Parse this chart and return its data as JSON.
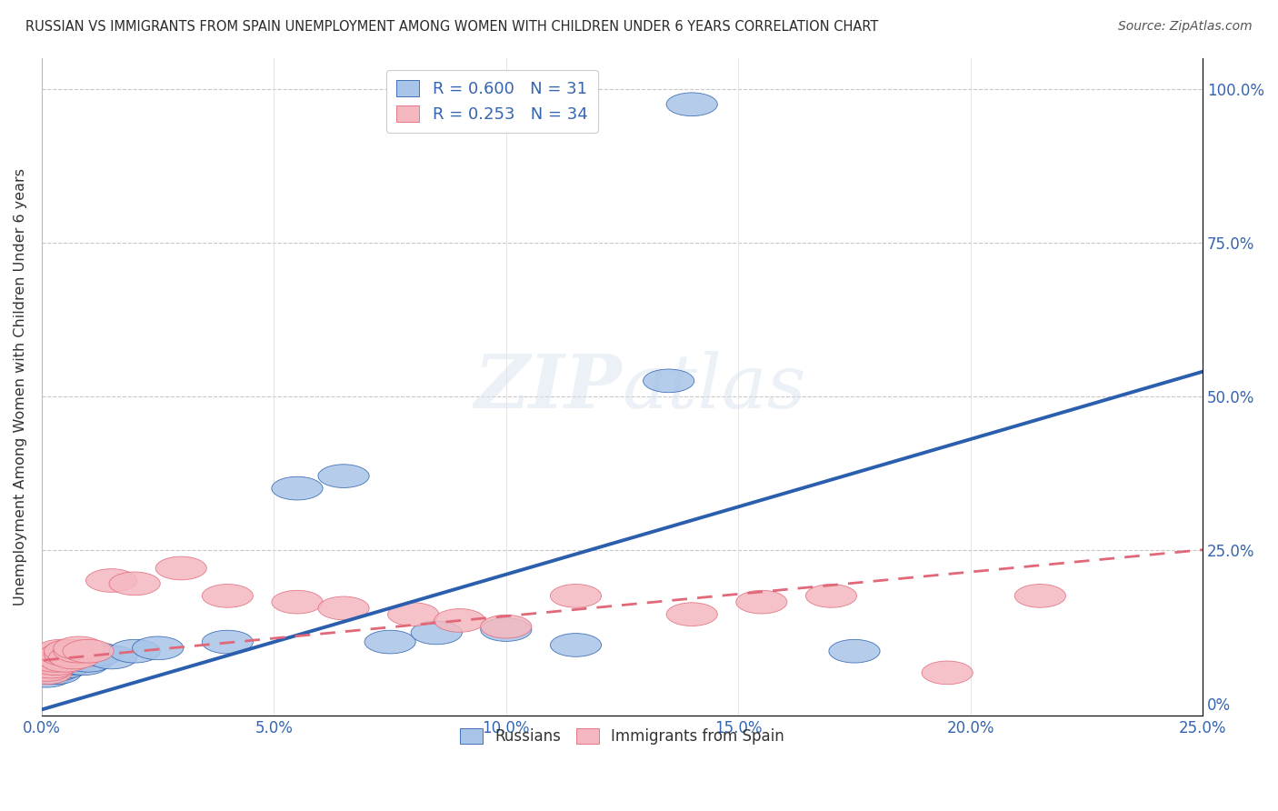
{
  "title": "RUSSIAN VS IMMIGRANTS FROM SPAIN UNEMPLOYMENT AMONG WOMEN WITH CHILDREN UNDER 6 YEARS CORRELATION CHART",
  "source": "Source: ZipAtlas.com",
  "xlim": [
    0.0,
    0.25
  ],
  "ylim": [
    -0.02,
    1.05
  ],
  "x_ticks": [
    0.0,
    0.05,
    0.1,
    0.15,
    0.2,
    0.25
  ],
  "x_ticklabels": [
    "0.0%",
    "5.0%",
    "10.0%",
    "15.0%",
    "20.0%",
    "25.0%"
  ],
  "y_ticks": [
    0.0,
    0.25,
    0.5,
    0.75,
    1.0
  ],
  "y_ticklabels_right": [
    "0%",
    "25.0%",
    "50.0%",
    "75.0%",
    "100.0%"
  ],
  "legend_russians": "Russians",
  "legend_spain": "Immigrants from Spain",
  "R_russians": 0.6,
  "N_russians": 31,
  "R_spain": 0.253,
  "N_spain": 34,
  "blue_scatter_color": "#a8c4e8",
  "blue_line_color": "#2b5fad",
  "pink_scatter_color": "#f5b8c0",
  "pink_line_color": "#e06878",
  "watermark_text": "ZIPatlas",
  "ylabel": "Unemployment Among Women with Children Under 6 years",
  "russians_x": [
    0.001,
    0.001,
    0.002,
    0.002,
    0.002,
    0.003,
    0.003,
    0.003,
    0.004,
    0.004,
    0.005,
    0.005,
    0.006,
    0.007,
    0.008,
    0.009,
    0.01,
    0.012,
    0.015,
    0.02,
    0.025,
    0.04,
    0.055,
    0.065,
    0.075,
    0.085,
    0.1,
    0.115,
    0.135,
    0.175,
    0.14
  ],
  "russians_y": [
    0.045,
    0.055,
    0.05,
    0.06,
    0.065,
    0.05,
    0.06,
    0.055,
    0.065,
    0.07,
    0.06,
    0.07,
    0.065,
    0.07,
    0.075,
    0.065,
    0.07,
    0.08,
    0.075,
    0.085,
    0.09,
    0.1,
    0.35,
    0.37,
    0.1,
    0.115,
    0.12,
    0.095,
    0.525,
    0.085,
    0.975
  ],
  "spain_x": [
    0.001,
    0.001,
    0.001,
    0.002,
    0.002,
    0.002,
    0.003,
    0.003,
    0.003,
    0.004,
    0.004,
    0.005,
    0.005,
    0.006,
    0.006,
    0.007,
    0.008,
    0.008,
    0.01,
    0.015,
    0.02,
    0.03,
    0.04,
    0.055,
    0.065,
    0.08,
    0.09,
    0.1,
    0.115,
    0.14,
    0.155,
    0.17,
    0.195,
    0.215
  ],
  "spain_y": [
    0.05,
    0.055,
    0.065,
    0.06,
    0.07,
    0.075,
    0.065,
    0.07,
    0.08,
    0.075,
    0.085,
    0.07,
    0.08,
    0.08,
    0.085,
    0.075,
    0.085,
    0.09,
    0.085,
    0.2,
    0.195,
    0.22,
    0.175,
    0.165,
    0.155,
    0.145,
    0.135,
    0.125,
    0.175,
    0.145,
    0.165,
    0.175,
    0.05,
    0.175
  ]
}
